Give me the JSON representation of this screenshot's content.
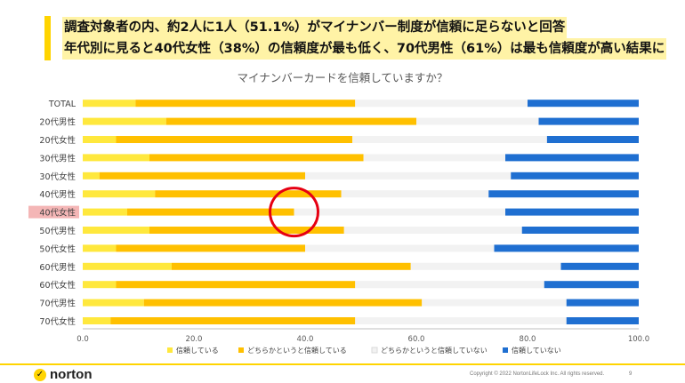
{
  "headline": {
    "line1": "調査対象者の内、約2人に1人（51.1%）がマイナンバー制度が信頼に足らないと回答",
    "line2": "年代別に見ると40代女性（38%）の信頼度が最も低く、70代男性（61%）は最も信頼度が高い結果に"
  },
  "colors": {
    "trust": "#FFE83D",
    "somewhat_trust": "#FFC000",
    "somewhat_distrust": "#F2F2F2",
    "distrust": "#1F6FD1",
    "highlight_circle": "#E60012",
    "highlight_label_bg": "#F4B6B6",
    "accent": "#FFD400"
  },
  "chart_data": {
    "type": "bar",
    "orientation": "horizontal",
    "stacked": true,
    "title": "マイナンバーカードを信頼していますか？",
    "categories": [
      "TOTAL",
      "20代男性",
      "20代女性",
      "30代男性",
      "30代女性",
      "40代男性",
      "40代女性",
      "50代男性",
      "50代女性",
      "60代男性",
      "60代女性",
      "70代男性",
      "70代女性"
    ],
    "series": [
      {
        "name": "信頼している",
        "values": [
          9.5,
          15,
          6,
          12,
          3,
          13,
          8,
          12,
          6,
          16,
          6,
          11,
          5
        ]
      },
      {
        "name": "どちらかというと信頼している",
        "values": [
          39.5,
          45,
          42.5,
          38.5,
          37,
          33.5,
          30,
          35,
          34,
          43,
          43,
          50,
          44
        ]
      },
      {
        "name": "どちらかというと信頼していない",
        "values": [
          31,
          22,
          35,
          25.5,
          37,
          26.5,
          38,
          32,
          34,
          27,
          34,
          26,
          38
        ]
      },
      {
        "name": "信頼していない",
        "values": [
          20,
          18,
          16.5,
          24,
          23,
          27,
          24,
          21,
          26,
          14,
          17,
          13,
          13
        ]
      }
    ],
    "xlim": [
      0,
      100
    ],
    "xticks": [
      "0.0",
      "20.0",
      "40.0",
      "60.0",
      "80.0",
      "100.0"
    ],
    "grid": false,
    "legend_position": "bottom",
    "highlighted_category": "40代女性"
  },
  "footer": {
    "logo_text": "norton",
    "copyright": "Copyright © 2022 NortonLifeLock Inc. All rights reserved.",
    "page_number": "9"
  }
}
